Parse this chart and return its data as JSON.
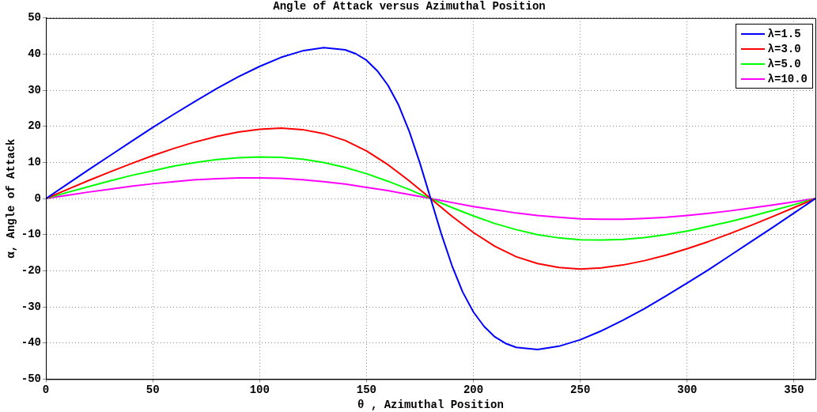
{
  "chart_data": {
    "type": "line",
    "title": "Angle of Attack versus Azimuthal Position",
    "xlabel": "θ , Azimuthal Position",
    "ylabel": "α, Angle of Attack",
    "x": [
      0,
      10,
      20,
      30,
      40,
      50,
      60,
      70,
      80,
      90,
      100,
      110,
      120,
      130,
      140,
      150,
      160,
      170,
      180,
      190,
      200,
      210,
      220,
      230,
      240,
      250,
      260,
      270,
      280,
      290,
      300,
      310,
      320,
      330,
      340,
      350,
      360
    ],
    "series": [
      {
        "name": "λ=1.5",
        "color": "#0000ff",
        "x": [
          0,
          10,
          20,
          30,
          40,
          50,
          60,
          70,
          80,
          90,
          100,
          110,
          120,
          130,
          140,
          145,
          150,
          155,
          160,
          165,
          170,
          175,
          180,
          185,
          190,
          195,
          200,
          205,
          210,
          215,
          220,
          230,
          240,
          250,
          260,
          270,
          280,
          290,
          300,
          310,
          320,
          330,
          340,
          350,
          360
        ],
        "values": [
          0,
          4.0,
          8.0,
          11.9,
          15.8,
          19.7,
          23.4,
          27.0,
          30.5,
          33.7,
          36.6,
          39.1,
          40.9,
          41.8,
          41.2,
          40.1,
          38.3,
          35.4,
          31.4,
          25.9,
          18.6,
          9.8,
          0,
          -9.8,
          -18.6,
          -25.9,
          -31.4,
          -35.4,
          -38.3,
          -40.1,
          -41.2,
          -41.8,
          -40.9,
          -39.1,
          -36.6,
          -33.7,
          -30.5,
          -27.0,
          -23.4,
          -19.7,
          -15.8,
          -11.9,
          -8.0,
          -4.0,
          0
        ]
      },
      {
        "name": "λ=3.0",
        "color": "#ff0000",
        "values": [
          0,
          2.5,
          5.0,
          7.4,
          9.7,
          11.9,
          13.9,
          15.7,
          17.2,
          18.4,
          19.2,
          19.5,
          19.1,
          18.0,
          16.1,
          13.2,
          9.4,
          4.9,
          0,
          -4.9,
          -9.4,
          -13.2,
          -16.1,
          -18.0,
          -19.1,
          -19.5,
          -19.2,
          -18.4,
          -17.2,
          -15.7,
          -13.9,
          -11.9,
          -9.7,
          -7.4,
          -5.0,
          -2.5,
          0
        ]
      },
      {
        "name": "λ=5.0",
        "color": "#00ff00",
        "values": [
          0,
          1.7,
          3.3,
          4.9,
          6.4,
          7.7,
          9.0,
          10.0,
          10.8,
          11.3,
          11.5,
          11.4,
          10.9,
          10.0,
          8.6,
          6.9,
          4.8,
          2.5,
          0,
          -2.5,
          -4.8,
          -6.9,
          -8.6,
          -10.0,
          -10.9,
          -11.4,
          -11.5,
          -11.3,
          -10.8,
          -10.0,
          -9.0,
          -7.7,
          -6.4,
          -4.9,
          -3.3,
          -1.7,
          0
        ]
      },
      {
        "name": "λ=10.0",
        "color": "#ff00ff",
        "values": [
          0,
          0.9,
          1.8,
          2.6,
          3.4,
          4.1,
          4.7,
          5.2,
          5.5,
          5.7,
          5.7,
          5.6,
          5.2,
          4.7,
          4.0,
          3.1,
          2.2,
          1.1,
          0,
          -1.1,
          -2.2,
          -3.1,
          -4.0,
          -4.7,
          -5.2,
          -5.6,
          -5.7,
          -5.7,
          -5.5,
          -5.2,
          -4.7,
          -4.1,
          -3.4,
          -2.6,
          -1.8,
          -0.9,
          0
        ]
      }
    ],
    "xlim": [
      0,
      360
    ],
    "xticks": [
      0,
      50,
      100,
      150,
      200,
      250,
      300,
      350
    ],
    "ylim": [
      -50,
      50
    ],
    "yticks": [
      -50,
      -40,
      -30,
      -20,
      -10,
      0,
      10,
      20,
      30,
      40,
      50
    ],
    "grid": true,
    "legend": "top right",
    "marker": "none",
    "line_style": "solid"
  }
}
